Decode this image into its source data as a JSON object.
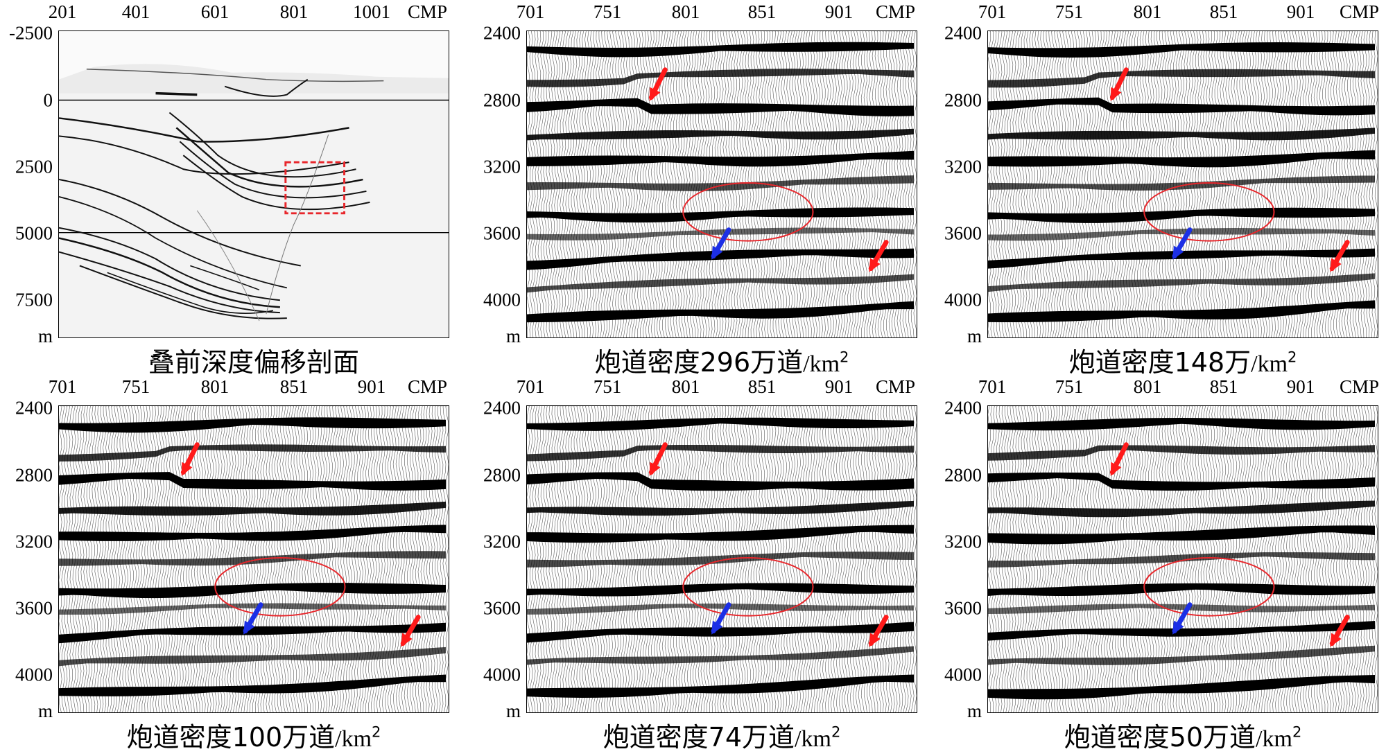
{
  "colors": {
    "red_arrow": "#ff1a1a",
    "blue_arrow": "#1c2fe6",
    "ellipse": "#e8262b",
    "box": "#e8262b",
    "wiggle": "#000000"
  },
  "panels": [
    {
      "id": "overview",
      "x_ticks": [
        "201",
        "401",
        "601",
        "801",
        "1001"
      ],
      "x_unit": "CMP",
      "y_ticks": [
        "-2500",
        "0",
        "2500",
        "5000",
        "7500"
      ],
      "y_unit": "m",
      "caption": {
        "main": "叠前深度偏移剖面",
        "unit": "",
        "sup": ""
      }
    },
    {
      "id": "d296",
      "x_ticks": [
        "701",
        "751",
        "801",
        "851",
        "901"
      ],
      "x_unit": "CMP",
      "y_ticks": [
        "2400",
        "2800",
        "3200",
        "3600",
        "4000"
      ],
      "y_unit": "m",
      "caption": {
        "main": "炮道密度296万道",
        "unit": "/km",
        "sup": "2"
      }
    },
    {
      "id": "d148",
      "x_ticks": [
        "701",
        "751",
        "801",
        "851",
        "901"
      ],
      "x_unit": "CMP",
      "y_ticks": [
        "2400",
        "2800",
        "3200",
        "3600",
        "4000"
      ],
      "y_unit": "m",
      "caption": {
        "main": "炮道密度148万",
        "unit": "/km",
        "sup": "2"
      }
    },
    {
      "id": "d100",
      "x_ticks": [
        "701",
        "751",
        "801",
        "851",
        "901"
      ],
      "x_unit": "CMP",
      "y_ticks": [
        "2400",
        "2800",
        "3200",
        "3600",
        "4000"
      ],
      "y_unit": "m",
      "caption": {
        "main": "炮道密度100万道",
        "unit": "/km",
        "sup": "2"
      }
    },
    {
      "id": "d74",
      "x_ticks": [
        "701",
        "751",
        "801",
        "851",
        "901"
      ],
      "x_unit": "CMP",
      "y_ticks": [
        "2400",
        "2800",
        "3200",
        "3600",
        "4000"
      ],
      "y_unit": "m",
      "caption": {
        "main": "炮道密度74万道",
        "unit": "/km",
        "sup": "2"
      }
    },
    {
      "id": "d50",
      "x_ticks": [
        "701",
        "751",
        "801",
        "851",
        "901"
      ],
      "x_unit": "CMP",
      "y_ticks": [
        "2400",
        "2800",
        "3200",
        "3600",
        "4000"
      ],
      "y_unit": "m",
      "caption": {
        "main": "炮道密度50万道",
        "unit": "/km",
        "sup": "2"
      }
    }
  ]
}
